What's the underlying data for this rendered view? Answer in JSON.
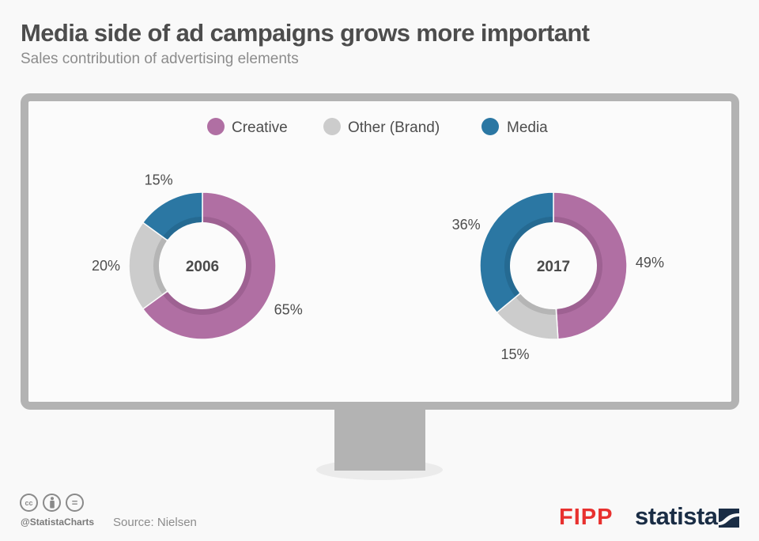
{
  "header": {
    "title": "Media side of ad campaigns grows more important",
    "subtitle": "Sales contribution of advertising elements"
  },
  "chart_data": {
    "type": "pie",
    "variant": "donut",
    "title": "Media side of ad campaigns grows more important",
    "subtitle": "Sales contribution of advertising elements",
    "legend": [
      {
        "name": "Creative",
        "color": "#b06fa3"
      },
      {
        "name": "Other (Brand)",
        "color": "#cccccc"
      },
      {
        "name": "Media",
        "color": "#2b77a3"
      }
    ],
    "legend_position": "top-center",
    "charts": [
      {
        "label": "2006",
        "slices": [
          {
            "name": "Creative",
            "value": 65,
            "label": "65%"
          },
          {
            "name": "Other (Brand)",
            "value": 20,
            "label": "20%"
          },
          {
            "name": "Media",
            "value": 15,
            "label": "15%"
          }
        ]
      },
      {
        "label": "2017",
        "slices": [
          {
            "name": "Creative",
            "value": 49,
            "label": "49%"
          },
          {
            "name": "Other (Brand)",
            "value": 15,
            "label": "15%"
          },
          {
            "name": "Media",
            "value": 36,
            "label": "36%"
          }
        ]
      }
    ]
  },
  "colors": {
    "creative": "#b06fa3",
    "other": "#cccccc",
    "media": "#2b77a3",
    "frame": "#b3b3b3",
    "fipp": "#e8312f",
    "statista": "#1a2d45"
  },
  "footer": {
    "license_icons": [
      "cc-icon",
      "attribution-icon",
      "no-derivatives-icon"
    ],
    "cc_label": "cc",
    "nd_label": "=",
    "handle": "@StatistaCharts",
    "source": "Source: Nielsen",
    "fipp_logo": "FIPP",
    "statista_logo": "statista"
  }
}
